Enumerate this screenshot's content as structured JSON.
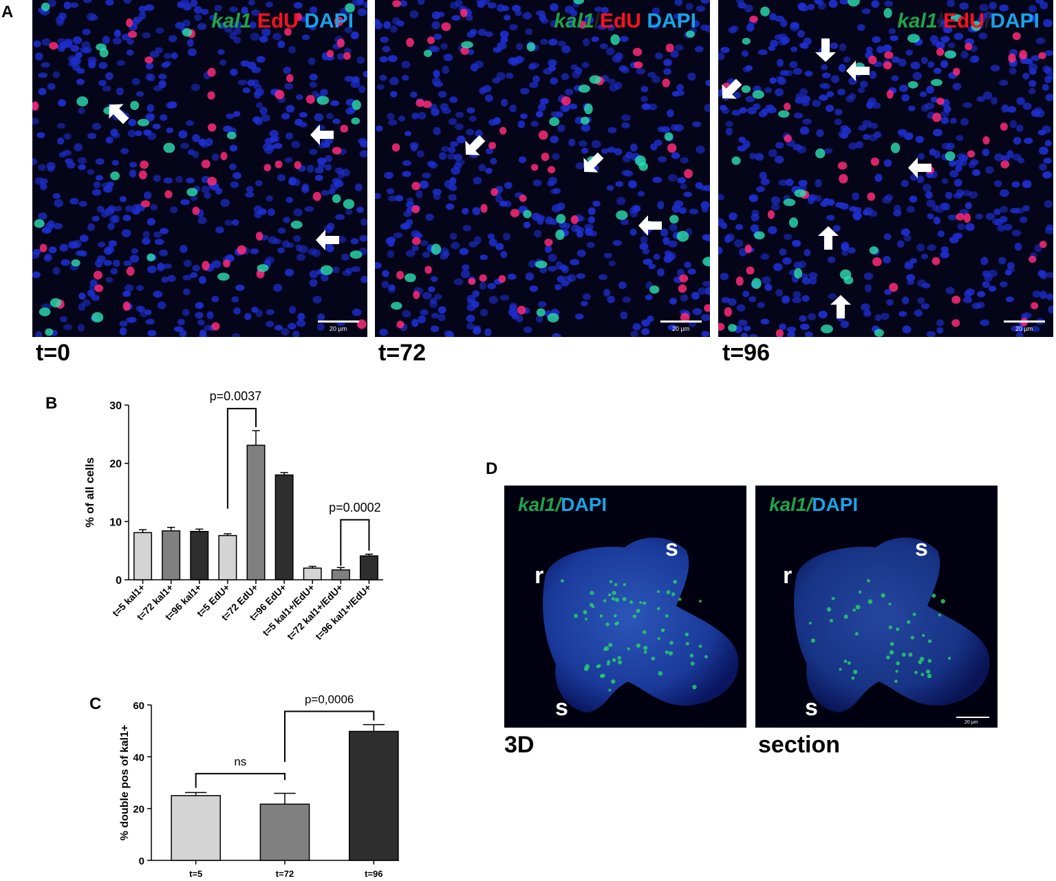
{
  "panels": {
    "A": {
      "letter": "A",
      "images": [
        {
          "time_label": "t=0",
          "channels": [
            "kal1",
            " ",
            "EdU",
            " ",
            "DAPI"
          ],
          "scale": "20 µm"
        },
        {
          "time_label": "t=72",
          "channels": [
            "kal1",
            "/",
            "EdU",
            " ",
            "DAPI"
          ],
          "scale": "20 µm"
        },
        {
          "time_label": "t=96",
          "channels": [
            "kal1",
            "/",
            "EdU",
            "/",
            "DAPI"
          ],
          "scale": "20 µm"
        }
      ]
    },
    "B": {
      "letter": "B"
    },
    "C": {
      "letter": "C"
    },
    "D": {
      "letter": "D",
      "images": [
        {
          "caption": "3D",
          "channels": [
            "kal1/",
            "DAPI"
          ],
          "labels": [
            "r",
            "s",
            "s"
          ]
        },
        {
          "caption": "section",
          "channels": [
            "kal1/",
            "DAPI"
          ],
          "labels": [
            "r",
            "s",
            "s"
          ],
          "scale": "20 µm"
        }
      ]
    }
  },
  "colors": {
    "kal1": "#1fa34a",
    "EdU": "#ff1020",
    "DAPI": "#18a4e8"
  },
  "chart_data": [
    {
      "type": "bar",
      "panel": "B",
      "ylabel": "% of all cells",
      "ylim": [
        0,
        30
      ],
      "yticks": [
        0,
        10,
        20,
        30
      ],
      "categories": [
        "t=5 kal1+",
        "t=72 kal1+",
        "t=96 kal1+",
        "t=5 EdU+",
        "t=72 EdU+",
        "t=96 EdU+",
        "t=5 kal1+/EdU+",
        "t=72 kal1+/EdU+",
        "t=96 kal1+/EdU+"
      ],
      "values": [
        8.1,
        8.4,
        8.3,
        7.6,
        23.1,
        18.0,
        2.0,
        1.7,
        4.1
      ],
      "errors": [
        0.5,
        0.6,
        0.4,
        0.3,
        2.5,
        0.4,
        0.3,
        0.4,
        0.3
      ],
      "bar_colors": [
        "#d4d4d4",
        "#808080",
        "#2e2e2e",
        "#d4d4d4",
        "#808080",
        "#2e2e2e",
        "#d4d4d4",
        "#808080",
        "#2e2e2e"
      ],
      "annotations": [
        {
          "text": "p=0.0037",
          "from": 3,
          "to": 4
        },
        {
          "text": "p=0.0002",
          "from": 7,
          "to": 8
        }
      ]
    },
    {
      "type": "bar",
      "panel": "C",
      "ylabel": "% double pos of kal1+",
      "ylim": [
        0,
        60
      ],
      "yticks": [
        0,
        20,
        40,
        60
      ],
      "categories": [
        "t=5",
        "t=72",
        "t=96"
      ],
      "values": [
        25.0,
        21.7,
        49.8
      ],
      "errors": [
        1.2,
        4.2,
        2.6
      ],
      "bar_colors": [
        "#d4d4d4",
        "#808080",
        "#2e2e2e"
      ],
      "annotations": [
        {
          "text": "ns",
          "from": 0,
          "to": 1
        },
        {
          "text": "p=0,0006",
          "from": 1,
          "to": 2
        }
      ]
    }
  ]
}
